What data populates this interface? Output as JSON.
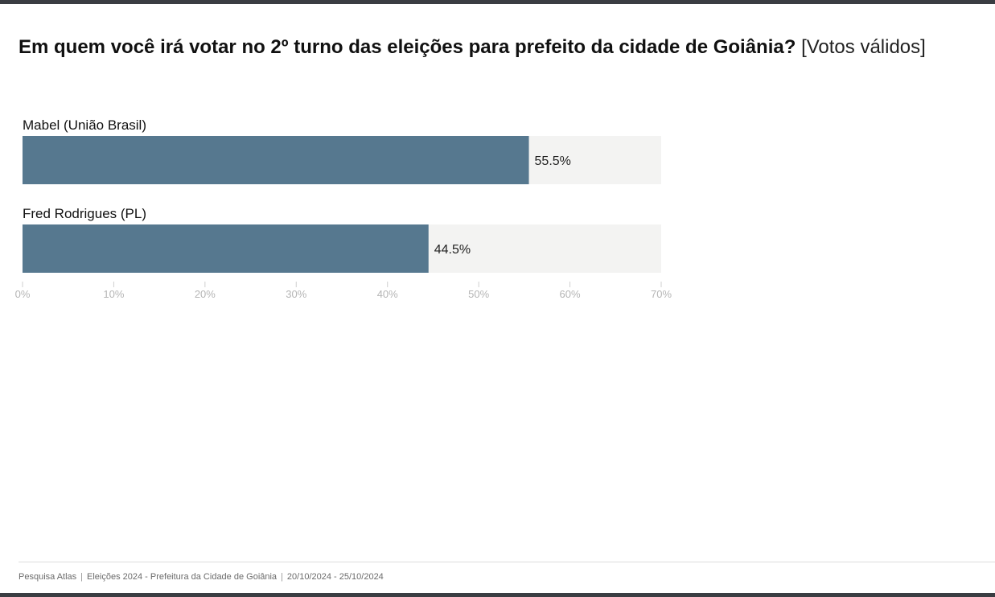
{
  "title": {
    "question": "Em quem você irá votar no 2º turno das eleições para prefeito da cidade de Goiânia?",
    "note": "[Votos válidos]"
  },
  "chart_data": {
    "type": "bar",
    "orientation": "horizontal",
    "categories": [
      "Mabel (União Brasil)",
      "Fred Rodrigues (PL)"
    ],
    "values": [
      55.5,
      44.5
    ],
    "value_labels": [
      "55.5%",
      "44.5%"
    ],
    "xlim": [
      0,
      70
    ],
    "ticks": [
      0,
      10,
      20,
      30,
      40,
      50,
      60,
      70
    ],
    "tick_labels": [
      "0%",
      "10%",
      "20%",
      "30%",
      "40%",
      "50%",
      "60%",
      "70%"
    ],
    "bar_color": "#56788f",
    "track_color": "#f3f3f2",
    "title": "Em quem você irá votar no 2º turno das eleições para prefeito da cidade de Goiânia? [Votos válidos]"
  },
  "footer": {
    "source": "Pesquisa Atlas",
    "survey": "Eleições 2024 - Prefeitura da Cidade de Goiânia",
    "period": "20/10/2024 - 25/10/2024",
    "separator": "|"
  }
}
